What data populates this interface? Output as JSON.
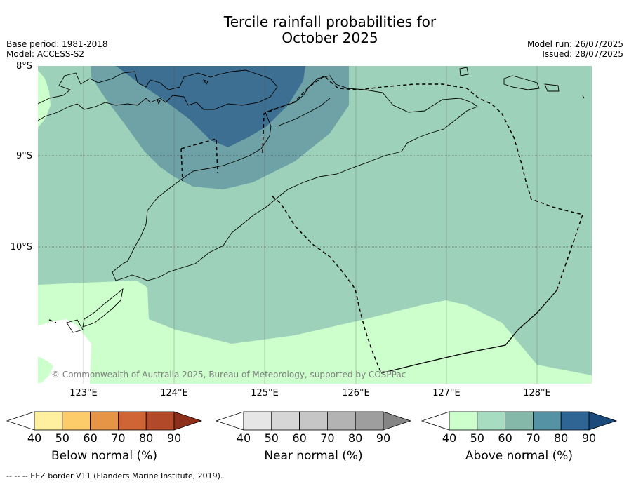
{
  "title_line1": "Tercile rainfall probabilities for",
  "title_line2": "October 2025",
  "base_period": "Base period: 1981-2018",
  "model": "Model: ACCESS-S2",
  "model_run": "Model run: 26/07/2025",
  "issued": "Issued: 28/07/2025",
  "copyright": "© Commonwealth of Australia 2025, Bureau of Meteorology, supported by COSPPac",
  "footnote": "--  --  -- EEZ border V11 (Flanders Marine Institute, 2019).",
  "map": {
    "lat_labels": [
      "8°S",
      "9°S",
      "10°S"
    ],
    "lon_labels": [
      "123°E",
      "124°E",
      "125°E",
      "126°E",
      "127°E",
      "128°E"
    ],
    "colors": {
      "above_50": "#ccffcc",
      "above_60": "#9dd1b9",
      "above_70": "#6ea2a6",
      "above_80": "#3c6f91",
      "coast": "#000000",
      "eez": "#000000"
    }
  },
  "colorbars": [
    {
      "label": "Below normal (%)",
      "ticks": [
        "40",
        "50",
        "60",
        "70",
        "80",
        "90"
      ],
      "colors": [
        "#ffffff",
        "#fff0a0",
        "#fdcc6a",
        "#e59545",
        "#cf6535",
        "#b24a2a",
        "#8c2f1b"
      ]
    },
    {
      "label": "Near normal (%)",
      "ticks": [
        "40",
        "50",
        "60",
        "70",
        "80",
        "90"
      ],
      "colors": [
        "#ffffff",
        "#e6e6e6",
        "#d6d6d6",
        "#c6c6c6",
        "#b3b3b3",
        "#9e9e9e",
        "#858585"
      ]
    },
    {
      "label": "Above normal (%)",
      "ticks": [
        "40",
        "50",
        "60",
        "70",
        "80",
        "90"
      ],
      "colors": [
        "#ffffff",
        "#ccffcc",
        "#a8dcc0",
        "#86b8aa",
        "#5592a3",
        "#2e6595",
        "#1a4b7a"
      ]
    }
  ]
}
